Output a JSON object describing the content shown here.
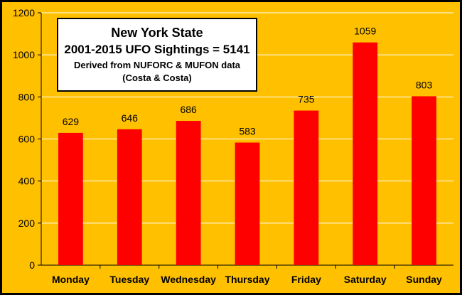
{
  "chart_data": {
    "type": "bar",
    "title": "New York State",
    "subtitle": "2001-2015 UFO Sightings = 5141",
    "source_note": "Derived from NUFORC & MUFON data",
    "credit": "(Costa & Costa)",
    "categories": [
      "Monday",
      "Tuesday",
      "Wednesday",
      "Thursday",
      "Friday",
      "Saturday",
      "Sunday"
    ],
    "values": [
      629,
      646,
      686,
      583,
      735,
      1059,
      803
    ],
    "ylim": [
      0,
      1200
    ],
    "yticks": [
      0,
      200,
      400,
      600,
      800,
      1000,
      1200
    ],
    "xlabel": "",
    "ylabel": "",
    "grid": true,
    "bar_color": "#ff0000",
    "background_color": "#ffc000",
    "plot_background_color": "#ffc000",
    "gridline_color": "#ffffff"
  }
}
